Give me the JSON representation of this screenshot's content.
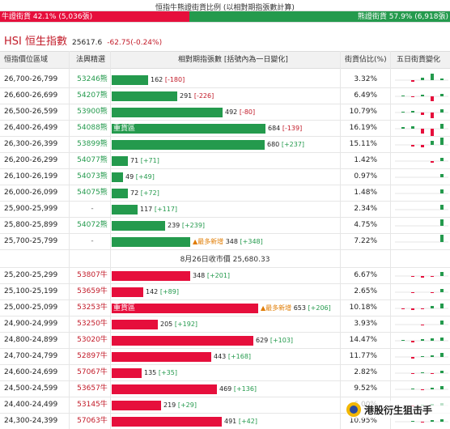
{
  "ratio": {
    "title": "恒指牛熊證街貨比例 (以相對期指張數計算)",
    "bull_label": "牛證街貨 42.1% (5,036張)",
    "bear_label": "熊證街貨 57.9% (6,918張)",
    "bull_pct": 42.1,
    "bear_pct": 57.9,
    "bull_color": "#e60f3c",
    "bear_color": "#249a4d"
  },
  "hsi": {
    "name": "HSI 恒生指數",
    "price": "25617.6",
    "change": "-62.75(-0.24%)"
  },
  "headers": {
    "range": "恒指價位區域",
    "code": "法興精選",
    "contracts": "相對期指張數 [括號內為一日變化]",
    "pct": "街貨佔比(%)",
    "spark": "五日街貨變化"
  },
  "bar_scale_max": 692,
  "bear_rows": [
    {
      "range": "26,700-26,799",
      "code": "53246熊",
      "contracts": 162,
      "value": "162",
      "delta": "[-180]",
      "dir": "down",
      "pct": "3.32%",
      "spark": [
        0,
        -2,
        3,
        8,
        2
      ]
    },
    {
      "range": "26,600-26,699",
      "code": "54207熊",
      "contracts": 291,
      "value": "291",
      "delta": "[-226]",
      "dir": "down",
      "pct": "6.49%",
      "spark": [
        1,
        -1,
        2,
        -6,
        3
      ]
    },
    {
      "range": "26,500-26,599",
      "code": "53900熊",
      "contracts": 492,
      "value": "492",
      "delta": "[-80]",
      "dir": "down",
      "pct": "10.79%",
      "spark": [
        1,
        2,
        -3,
        -7,
        4
      ]
    },
    {
      "range": "26,400-26,499",
      "code": "54088熊",
      "contracts": 684,
      "value": "684",
      "delta": "[-139]",
      "dir": "down",
      "pct": "16.19%",
      "label": "重貨區",
      "spark": [
        2,
        3,
        -6,
        -9,
        6
      ]
    },
    {
      "range": "26,300-26,399",
      "code": "53899熊",
      "contracts": 680,
      "value": "680",
      "delta": "[+237]",
      "dir": "up",
      "pct": "15.11%",
      "spark": [
        0,
        -2,
        -3,
        5,
        9
      ]
    },
    {
      "range": "26,200-26,299",
      "code": "54077熊",
      "contracts": 71,
      "value": "71",
      "delta": "[+71]",
      "dir": "up",
      "pct": "1.42%",
      "spark": [
        0,
        0,
        0,
        -2,
        4
      ]
    },
    {
      "range": "26,100-26,199",
      "code": "54073熊",
      "contracts": 49,
      "value": "49",
      "delta": "[+49]",
      "dir": "up",
      "pct": "0.97%",
      "spark": [
        0,
        0,
        0,
        0,
        4
      ]
    },
    {
      "range": "26,000-26,099",
      "code": "54075熊",
      "contracts": 72,
      "value": "72",
      "delta": "[+72]",
      "dir": "up",
      "pct": "1.48%",
      "spark": [
        0,
        0,
        0,
        0,
        5
      ]
    },
    {
      "range": "25,900-25,999",
      "code": "-",
      "contracts": 117,
      "value": "117",
      "delta": "[+117]",
      "dir": "up",
      "pct": "2.34%",
      "spark": [
        0,
        0,
        0,
        0,
        6
      ]
    },
    {
      "range": "25,800-25,899",
      "code": "54072熊",
      "contracts": 239,
      "value": "239",
      "delta": "[+239]",
      "dir": "up",
      "pct": "4.75%",
      "spark": [
        0,
        0,
        0,
        0,
        8
      ]
    },
    {
      "range": "25,700-25,799",
      "code": "-",
      "contracts": 348,
      "value": "348",
      "delta": "[+348]",
      "dir": "up",
      "pct": "7.22%",
      "tag": "▲最多新增",
      "spark": [
        0,
        0,
        0,
        0,
        9
      ]
    }
  ],
  "close_note": "8月26日收市價 25,680.33",
  "bull_rows": [
    {
      "range": "25,200-25,299",
      "code": "53807牛",
      "contracts": 348,
      "value": "348",
      "delta": "[+201]",
      "dir": "up",
      "pct": "6.67%",
      "spark": [
        0,
        -1,
        -2,
        -1,
        5
      ]
    },
    {
      "range": "25,100-25,199",
      "code": "53659牛",
      "contracts": 142,
      "value": "142",
      "delta": "[+89]",
      "dir": "up",
      "pct": "2.65%",
      "spark": [
        0,
        -1,
        0,
        -1,
        4
      ]
    },
    {
      "range": "25,000-25,099",
      "code": "53253牛",
      "contracts": 653,
      "value": "653",
      "delta": "[+206]",
      "dir": "up",
      "pct": "10.18%",
      "label": "重貨區",
      "tag": "▲最多新增",
      "spark": [
        -1,
        -2,
        -1,
        3,
        6
      ]
    },
    {
      "range": "24,900-24,999",
      "code": "53250牛",
      "contracts": 205,
      "value": "205",
      "delta": "[+192]",
      "dir": "up",
      "pct": "3.93%",
      "spark": [
        0,
        0,
        -1,
        0,
        5
      ]
    },
    {
      "range": "24,800-24,899",
      "code": "53020牛",
      "contracts": 629,
      "value": "629",
      "delta": "[+103]",
      "dir": "up",
      "pct": "14.47%",
      "spark": [
        1,
        -2,
        2,
        3,
        4
      ]
    },
    {
      "range": "24,700-24,799",
      "code": "52897牛",
      "contracts": 443,
      "value": "443",
      "delta": "[+168]",
      "dir": "up",
      "pct": "11.77%",
      "spark": [
        0,
        -2,
        1,
        2,
        5
      ]
    },
    {
      "range": "24,600-24,699",
      "code": "57067牛",
      "contracts": 135,
      "value": "135",
      "delta": "[+35]",
      "dir": "up",
      "pct": "2.82%",
      "spark": [
        0,
        -1,
        1,
        -1,
        3
      ]
    },
    {
      "range": "24,500-24,599",
      "code": "53657牛",
      "contracts": 469,
      "value": "469",
      "delta": "[+136]",
      "dir": "up",
      "pct": "9.52%",
      "spark": [
        0,
        1,
        -1,
        2,
        4
      ]
    },
    {
      "range": "24,400-24,499",
      "code": "53145牛",
      "contracts": 219,
      "value": "219",
      "delta": "[+29]",
      "dir": "up",
      "pct": "6.00%",
      "spark": [
        0,
        -1,
        1,
        2,
        3
      ]
    },
    {
      "range": "24,300-24,399",
      "code": "57063牛",
      "contracts": 491,
      "value": "491",
      "delta": "[+42]",
      "dir": "up",
      "pct": "10.95%",
      "spark": [
        0,
        1,
        -1,
        2,
        3
      ]
    }
  ],
  "watermark": "港股衍生狙击手"
}
